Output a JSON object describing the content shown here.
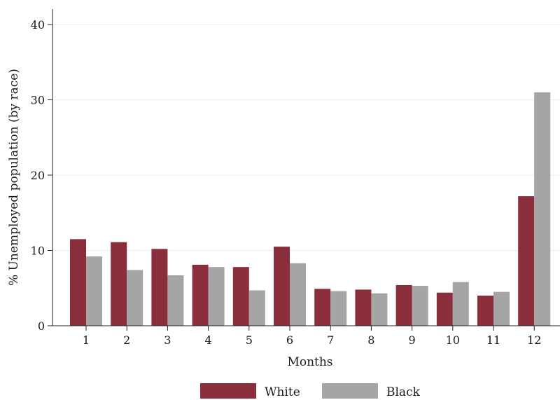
{
  "chart_data": {
    "type": "bar",
    "title": "",
    "xlabel": "Months",
    "ylabel": "% Unemployed population (by race)",
    "ylim": [
      0,
      40
    ],
    "yticks": [
      0,
      10,
      20,
      30,
      40
    ],
    "categories": [
      "1",
      "2",
      "3",
      "4",
      "5",
      "6",
      "7",
      "8",
      "9",
      "10",
      "11",
      "12"
    ],
    "series": [
      {
        "name": "White",
        "color": "#8b2e3c",
        "values": [
          11.5,
          11.1,
          10.2,
          8.1,
          7.8,
          10.5,
          4.9,
          4.8,
          5.4,
          4.4,
          4.0,
          17.2
        ]
      },
      {
        "name": "Black",
        "color": "#a5a5a5",
        "values": [
          9.2,
          7.4,
          6.7,
          7.8,
          4.7,
          8.3,
          4.6,
          4.3,
          5.3,
          5.8,
          4.5,
          31.0
        ]
      }
    ],
    "grid": true,
    "legend": "bottom"
  }
}
